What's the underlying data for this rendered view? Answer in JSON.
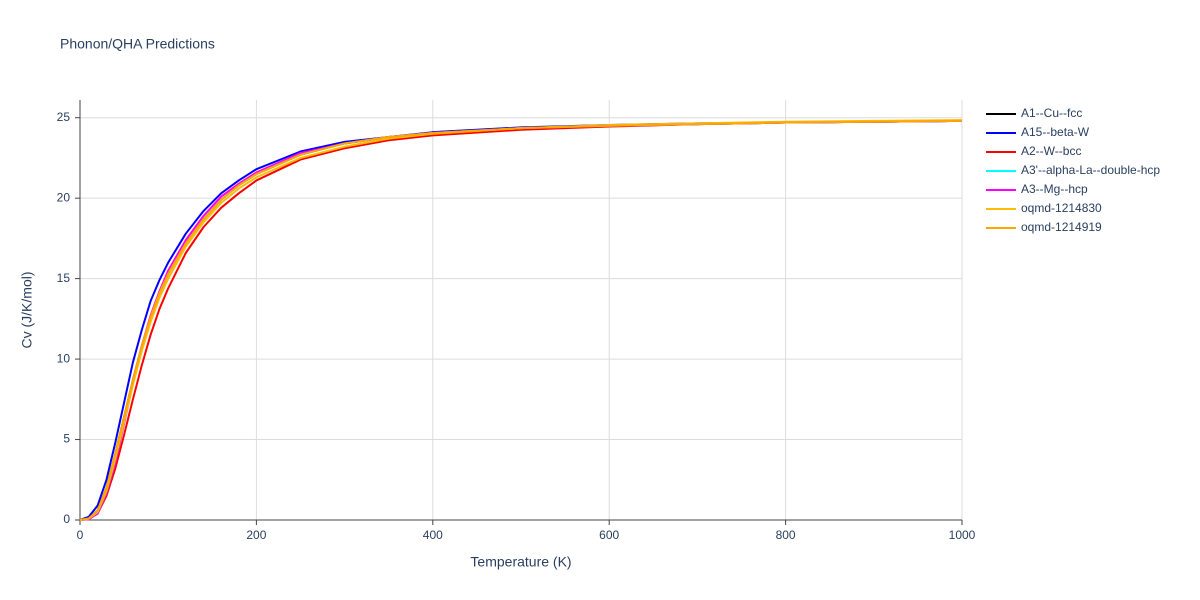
{
  "chart_data": {
    "type": "line",
    "title": "Phonon/QHA Predictions",
    "x_label": "Temperature (K)",
    "y_label": "Cv (J/K/mol)",
    "x": [
      0,
      10,
      20,
      30,
      40,
      50,
      60,
      70,
      80,
      90,
      100,
      120,
      140,
      160,
      180,
      200,
      250,
      300,
      350,
      400,
      500,
      600,
      700,
      800,
      900,
      1000
    ],
    "series": [
      {
        "name": "A1--Cu--fcc",
        "color": "#000000",
        "values": [
          0,
          0.1,
          0.6,
          2.0,
          4.1,
          6.4,
          8.7,
          10.8,
          12.6,
          14.1,
          15.3,
          17.2,
          18.7,
          19.9,
          20.8,
          21.5,
          22.7,
          23.4,
          23.8,
          24.05,
          24.35,
          24.5,
          24.6,
          24.7,
          24.75,
          24.8
        ]
      },
      {
        "name": "A15--beta-W",
        "color": "#0000ff",
        "values": [
          0,
          0.2,
          0.9,
          2.5,
          4.8,
          7.3,
          9.8,
          11.8,
          13.6,
          14.9,
          16.0,
          17.8,
          19.2,
          20.3,
          21.1,
          21.8,
          22.9,
          23.5,
          23.8,
          24.1,
          24.4,
          24.55,
          24.65,
          24.7,
          24.75,
          24.8
        ]
      },
      {
        "name": "A2--W--bcc",
        "color": "#ff0000",
        "values": [
          0,
          0.05,
          0.4,
          1.5,
          3.2,
          5.3,
          7.5,
          9.6,
          11.5,
          13.1,
          14.4,
          16.6,
          18.2,
          19.4,
          20.3,
          21.1,
          22.4,
          23.1,
          23.6,
          23.9,
          24.25,
          24.45,
          24.6,
          24.7,
          24.75,
          24.8
        ]
      },
      {
        "name": "A3'--alpha-La--double-hcp",
        "color": "#00ffff",
        "values": [
          0,
          0.05,
          0.4,
          1.7,
          3.6,
          6.0,
          8.5,
          10.7,
          12.6,
          14.1,
          15.3,
          17.2,
          18.7,
          19.9,
          20.8,
          21.5,
          22.7,
          23.4,
          23.8,
          24.05,
          24.35,
          24.5,
          24.6,
          24.7,
          24.75,
          24.8
        ]
      },
      {
        "name": "A3--Mg--hcp",
        "color": "#ff00ff",
        "values": [
          0,
          0.05,
          0.4,
          1.7,
          3.6,
          6.0,
          8.5,
          10.8,
          12.7,
          14.2,
          15.5,
          17.4,
          18.9,
          20.1,
          20.9,
          21.6,
          22.8,
          23.4,
          23.8,
          24.05,
          24.35,
          24.5,
          24.6,
          24.7,
          24.75,
          24.8
        ]
      },
      {
        "name": "oqmd-1214830",
        "color": "#fbbc04",
        "values": [
          0,
          0.08,
          0.5,
          1.8,
          3.8,
          6.1,
          8.4,
          10.5,
          12.3,
          13.8,
          15.0,
          17.0,
          18.5,
          19.7,
          20.6,
          21.3,
          22.5,
          23.2,
          23.7,
          24.0,
          24.35,
          24.55,
          24.65,
          24.75,
          24.8,
          24.85
        ]
      },
      {
        "name": "oqmd-1214919",
        "color": "#ffa500",
        "values": [
          0,
          0.1,
          0.6,
          2.0,
          4.1,
          6.4,
          8.7,
          10.8,
          12.6,
          14.1,
          15.3,
          17.2,
          18.7,
          19.9,
          20.8,
          21.5,
          22.7,
          23.4,
          23.8,
          24.05,
          24.35,
          24.5,
          24.6,
          24.7,
          24.75,
          24.8
        ]
      }
    ],
    "xlim": [
      0,
      1000
    ],
    "xticks": [
      0,
      200,
      400,
      600,
      800,
      1000
    ],
    "ylim": [
      0,
      26.1
    ],
    "yticks": [
      0,
      5,
      10,
      15,
      20,
      25
    ],
    "grid": true
  }
}
